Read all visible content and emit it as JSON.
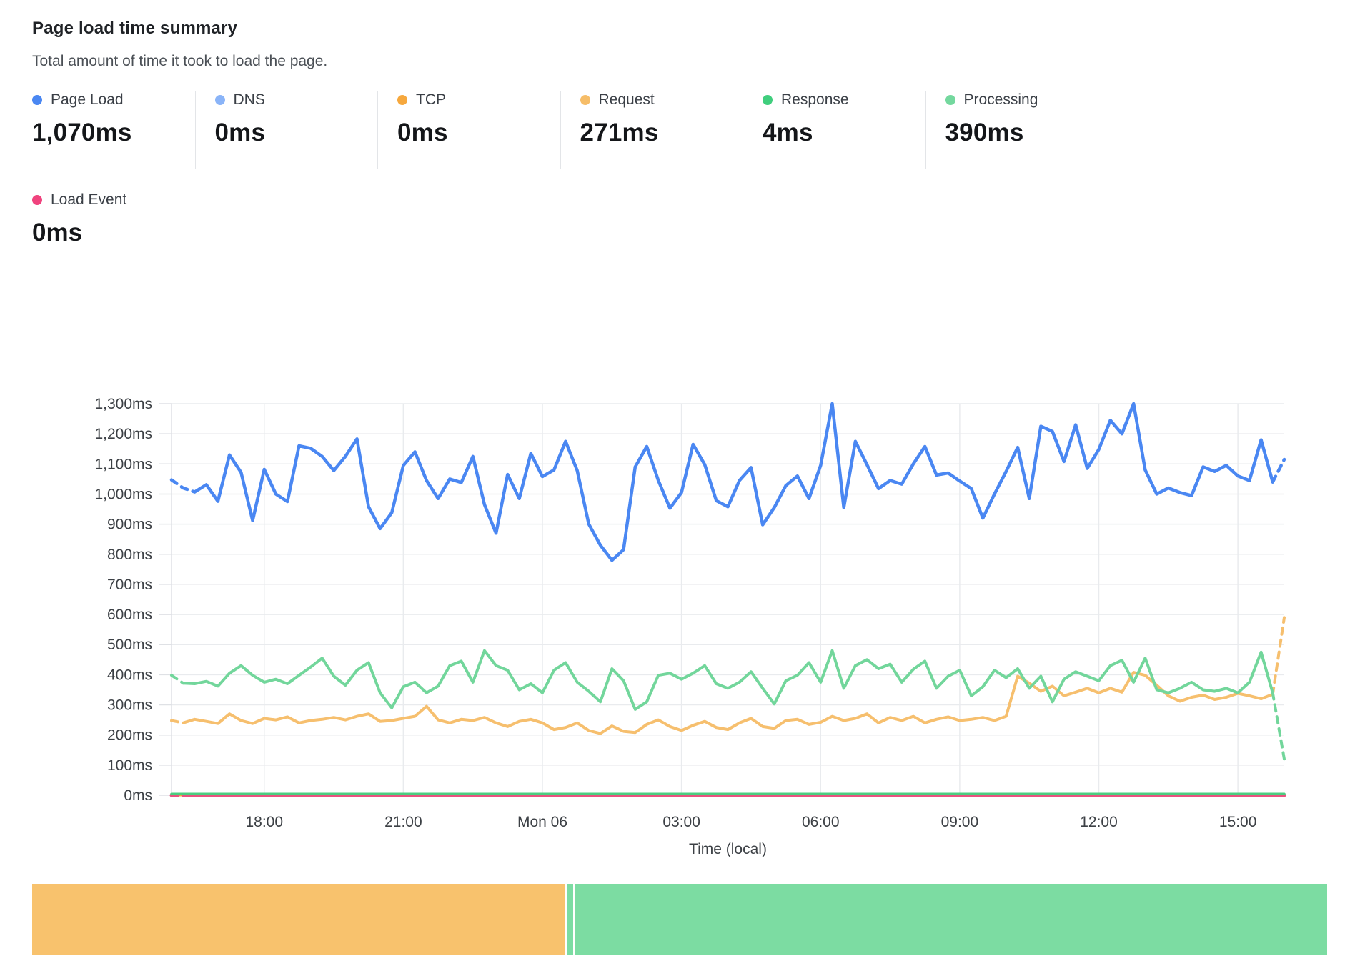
{
  "header": {
    "title": "Page load time summary",
    "subtitle": "Total amount of time it took to load the page."
  },
  "metrics_row1": [
    {
      "label": "Page Load",
      "value": "1,070ms",
      "color": "#4a87f2"
    },
    {
      "label": "DNS",
      "value": "0ms",
      "color": "#8ab4f8"
    },
    {
      "label": "TCP",
      "value": "0ms",
      "color": "#f6a83d"
    },
    {
      "label": "Request",
      "value": "271ms",
      "color": "#f6bd68"
    },
    {
      "label": "Response",
      "value": "4ms",
      "color": "#40ce7d"
    },
    {
      "label": "Processing",
      "value": "390ms",
      "color": "#74d89e"
    }
  ],
  "metrics_row2": [
    {
      "label": "Load Event",
      "value": "0ms",
      "color": "#f0437e"
    }
  ],
  "chart_data": {
    "type": "line",
    "title": "Page load time summary",
    "xlabel": "Time (local)",
    "ylabel": "",
    "ylim": [
      0,
      1300
    ],
    "y_tick_step": 100,
    "y_tick_labels": [
      "0ms",
      "100ms",
      "200ms",
      "300ms",
      "400ms",
      "500ms",
      "600ms",
      "700ms",
      "800ms",
      "900ms",
      "1,000ms",
      "1,100ms",
      "1,200ms",
      "1,300ms"
    ],
    "x_start": "Sun 16:00",
    "x_end": "Mon 16:00",
    "interval_minutes": 15,
    "point_count": 97,
    "x_ticks": [
      {
        "label": "18:00",
        "hour_offset": 2
      },
      {
        "label": "21:00",
        "hour_offset": 5
      },
      {
        "label": "Mon 06",
        "hour_offset": 8
      },
      {
        "label": "03:00",
        "hour_offset": 11
      },
      {
        "label": "06:00",
        "hour_offset": 14
      },
      {
        "label": "09:00",
        "hour_offset": 17
      },
      {
        "label": "12:00",
        "hour_offset": 20
      },
      {
        "label": "15:00",
        "hour_offset": 23
      }
    ],
    "grid": true,
    "legend_position": "top-external",
    "series": [
      {
        "name": "DNS",
        "color": "#8ab4f8",
        "width": 3,
        "dash_start": 0,
        "dash_end": 0,
        "constant": 0
      },
      {
        "name": "TCP",
        "color": "#f6a83d",
        "width": 3,
        "dash_start": 0,
        "dash_end": 0,
        "constant": 0
      },
      {
        "name": "Load Event",
        "color": "#e8527f",
        "width": 5,
        "dash_start": 1,
        "dash_end": 0,
        "constant": 0
      },
      {
        "name": "Response",
        "color": "#4ccd80",
        "width": 3.5,
        "dash_start": 0,
        "dash_end": 0,
        "constant": 4
      },
      {
        "name": "Request",
        "color": "#f6bf6e",
        "width": 4,
        "dash_start": 1,
        "dash_end": 1,
        "values": [
          248,
          240,
          252,
          245,
          238,
          270,
          248,
          238,
          255,
          250,
          260,
          240,
          248,
          252,
          258,
          250,
          262,
          270,
          245,
          248,
          255,
          262,
          295,
          250,
          240,
          252,
          248,
          258,
          240,
          228,
          245,
          252,
          240,
          218,
          225,
          240,
          215,
          205,
          230,
          212,
          208,
          235,
          250,
          228,
          215,
          232,
          245,
          225,
          218,
          240,
          255,
          228,
          222,
          248,
          252,
          235,
          242,
          262,
          248,
          255,
          270,
          240,
          258,
          248,
          262,
          240,
          252,
          260,
          248,
          252,
          258,
          248,
          262,
          395,
          372,
          345,
          362,
          330,
          342,
          355,
          340,
          355,
          342,
          408,
          398,
          365,
          330,
          312,
          325,
          332,
          318,
          325,
          338,
          330,
          320,
          335,
          590
        ]
      },
      {
        "name": "Processing",
        "color": "#72d69b",
        "width": 4,
        "dash_start": 1,
        "dash_end": 1,
        "values": [
          398,
          372,
          370,
          378,
          362,
          405,
          430,
          398,
          375,
          385,
          370,
          398,
          425,
          455,
          395,
          365,
          415,
          440,
          340,
          290,
          360,
          375,
          340,
          362,
          430,
          445,
          375,
          480,
          430,
          415,
          350,
          370,
          340,
          415,
          440,
          375,
          345,
          310,
          420,
          380,
          285,
          310,
          398,
          405,
          385,
          405,
          430,
          370,
          355,
          375,
          410,
          355,
          303,
          380,
          398,
          440,
          375,
          480,
          355,
          430,
          450,
          420,
          435,
          375,
          418,
          445,
          355,
          395,
          415,
          330,
          360,
          415,
          390,
          420,
          355,
          395,
          310,
          385,
          410,
          395,
          380,
          430,
          448,
          375,
          455,
          350,
          340,
          355,
          375,
          350,
          345,
          355,
          340,
          375,
          475,
          340,
          120
        ]
      },
      {
        "name": "Page Load",
        "color": "#4a87f2",
        "width": 4.5,
        "dash_start": 2,
        "dash_end": 1,
        "values": [
          1047,
          1020,
          1007,
          1031,
          976,
          1130,
          1072,
          912,
          1082,
          1000,
          975,
          1160,
          1152,
          1125,
          1078,
          1125,
          1183,
          958,
          885,
          938,
          1095,
          1140,
          1045,
          985,
          1050,
          1038,
          1125,
          965,
          870,
          1065,
          985,
          1135,
          1058,
          1080,
          1175,
          1078,
          900,
          830,
          780,
          815,
          1090,
          1158,
          1045,
          953,
          1005,
          1165,
          1098,
          978,
          958,
          1045,
          1088,
          898,
          955,
          1028,
          1060,
          985,
          1095,
          1300,
          955,
          1175,
          1098,
          1018,
          1045,
          1033,
          1100,
          1158,
          1063,
          1070,
          1043,
          1018,
          920,
          1000,
          1075,
          1155,
          985,
          1225,
          1208,
          1108,
          1230,
          1085,
          1148,
          1245,
          1200,
          1300,
          1080,
          1000,
          1020,
          1005,
          995,
          1090,
          1075,
          1095,
          1060,
          1045,
          1180,
          1040,
          1115
        ]
      }
    ]
  },
  "footer_bar": {
    "segments": [
      {
        "name": "request-range",
        "color": "#f8c26d",
        "pct": 41.2
      },
      {
        "name": "response-sliver",
        "color": "#7cdca2",
        "pct": 0.45
      },
      {
        "name": "response-range",
        "color": "#7cdca2",
        "pct": 58.05
      }
    ]
  },
  "style_colors": {
    "grid": "#e9ebee",
    "axis_edge": "#dfe1e5",
    "tick_text": "#3c4045"
  }
}
